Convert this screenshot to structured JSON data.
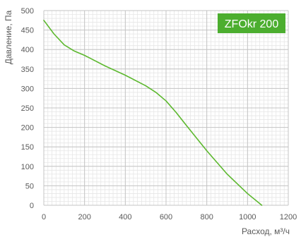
{
  "chart_data": {
    "type": "line",
    "title": "",
    "xlabel": "Расход, м³/ч",
    "ylabel": "Давление, Па",
    "xlim": [
      0,
      1200
    ],
    "ylim": [
      0,
      500
    ],
    "x_ticks": [
      0,
      200,
      400,
      600,
      800,
      1000,
      1200
    ],
    "y_ticks": [
      0,
      50,
      100,
      150,
      200,
      250,
      300,
      350,
      400,
      450,
      500
    ],
    "grid": true,
    "legend": "top-right",
    "series": [
      {
        "name": "ZFOkr 200",
        "color": "#5cb82e",
        "x": [
          0,
          50,
          100,
          150,
          200,
          300,
          400,
          500,
          550,
          600,
          650,
          700,
          800,
          900,
          1000,
          1070
        ],
        "y": [
          475,
          440,
          412,
          396,
          385,
          358,
          334,
          307,
          290,
          268,
          238,
          205,
          140,
          80,
          30,
          0
        ]
      }
    ],
    "badge_color": "#4cae2f"
  }
}
